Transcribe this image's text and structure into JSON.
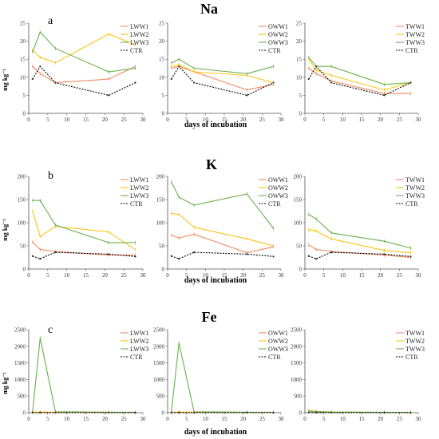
{
  "colors": {
    "s1": "#f08a5d",
    "s2": "#ffc20e",
    "s3": "#6ab04c",
    "ctr": "#000000",
    "axis": "#555555",
    "ctr_marker": "#333333"
  },
  "chart_data": [
    {
      "type": "line",
      "name": "na",
      "title": "Na",
      "letter": "a",
      "ylabel": "mg kg⁻¹",
      "xlabel": "days of incubation",
      "xlim": [
        0,
        30
      ],
      "ylim": [
        0,
        25
      ],
      "xticks": [
        0,
        5,
        10,
        15,
        20,
        25,
        30
      ],
      "yticks": [
        0,
        5,
        10,
        15,
        20,
        25
      ],
      "panels": [
        {
          "series": [
            {
              "name": "LWW1",
              "color": "s1",
              "x": [
                1,
                3,
                7,
                21,
                28
              ],
              "y": [
                13,
                11,
                8.5,
                9.5,
                13
              ]
            },
            {
              "name": "LWW2",
              "color": "s2",
              "x": [
                1,
                3,
                7,
                21,
                28
              ],
              "y": [
                17.5,
                15.5,
                14,
                22,
                19
              ]
            },
            {
              "name": "LWW3",
              "color": "s3",
              "x": [
                1,
                3,
                7,
                21,
                28
              ],
              "y": [
                17,
                22.5,
                18,
                11.5,
                12.5
              ]
            },
            {
              "name": "CTR",
              "color": "ctr",
              "x": [
                1,
                3,
                7,
                21,
                28
              ],
              "y": [
                9.5,
                13,
                8.5,
                5,
                8.5
              ]
            }
          ]
        },
        {
          "series": [
            {
              "name": "OWW1",
              "color": "s1",
              "x": [
                1,
                3,
                7,
                21,
                28
              ],
              "y": [
                12.5,
                13,
                11.5,
                6.5,
                8
              ]
            },
            {
              "name": "OWW2",
              "color": "s2",
              "x": [
                1,
                3,
                7,
                21,
                28
              ],
              "y": [
                13,
                13.5,
                11.5,
                10.5,
                8.5
              ]
            },
            {
              "name": "OWW3",
              "color": "s3",
              "x": [
                1,
                3,
                7,
                21,
                28
              ],
              "y": [
                14,
                15,
                12.5,
                11,
                13
              ]
            },
            {
              "name": "CTR",
              "color": "ctr",
              "x": [
                1,
                3,
                7,
                21,
                28
              ],
              "y": [
                9.5,
                13,
                8.5,
                5,
                8.5
              ]
            }
          ]
        },
        {
          "series": [
            {
              "name": "TWW1",
              "color": "s1",
              "x": [
                1,
                3,
                7,
                21,
                28
              ],
              "y": [
                12.5,
                11,
                9,
                5.5,
                5.5
              ]
            },
            {
              "name": "TWW2",
              "color": "s2",
              "x": [
                1,
                3,
                7,
                21,
                28
              ],
              "y": [
                15,
                12,
                10.5,
                6.5,
                8.5
              ]
            },
            {
              "name": "TWW3",
              "color": "s3",
              "x": [
                1,
                3,
                7,
                21,
                28
              ],
              "y": [
                15.5,
                13,
                13,
                8,
                8.5
              ]
            },
            {
              "name": "CTR",
              "color": "ctr",
              "x": [
                1,
                3,
                7,
                21,
                28
              ],
              "y": [
                9.5,
                13,
                8.5,
                5,
                8.5
              ]
            }
          ]
        }
      ]
    },
    {
      "type": "line",
      "name": "k",
      "title": "K",
      "letter": "b",
      "ylabel": "mg kg⁻¹",
      "xlabel": "days of incubation",
      "xlim": [
        0,
        30
      ],
      "ylim": [
        0,
        200
      ],
      "xticks": [
        0,
        5,
        10,
        15,
        20,
        25,
        30
      ],
      "yticks": [
        0,
        50,
        100,
        150,
        200
      ],
      "panels": [
        {
          "series": [
            {
              "name": "LWW1",
              "color": "s1",
              "x": [
                1,
                3,
                7,
                21,
                28
              ],
              "y": [
                58,
                42,
                38,
                30,
                30
              ]
            },
            {
              "name": "LWW2",
              "color": "s2",
              "x": [
                1,
                3,
                7,
                21,
                28
              ],
              "y": [
                125,
                70,
                92,
                80,
                42
              ]
            },
            {
              "name": "LWW3",
              "color": "s3",
              "x": [
                1,
                3,
                7,
                21,
                28
              ],
              "y": [
                148,
                148,
                95,
                57,
                57
              ]
            },
            {
              "name": "CTR",
              "color": "ctr",
              "x": [
                1,
                3,
                7,
                21,
                28
              ],
              "y": [
                28,
                22,
                36,
                32,
                27
              ]
            }
          ]
        },
        {
          "series": [
            {
              "name": "OWW1",
              "color": "s1",
              "x": [
                1,
                3,
                7,
                21,
                28
              ],
              "y": [
                73,
                67,
                75,
                35,
                48
              ]
            },
            {
              "name": "OWW2",
              "color": "s2",
              "x": [
                1,
                3,
                7,
                21,
                28
              ],
              "y": [
                120,
                118,
                90,
                65,
                50
              ]
            },
            {
              "name": "OWW3",
              "color": "s3",
              "x": [
                1,
                3,
                7,
                21,
                28
              ],
              "y": [
                188,
                155,
                138,
                162,
                88
              ]
            },
            {
              "name": "CTR",
              "color": "ctr",
              "x": [
                1,
                3,
                7,
                21,
                28
              ],
              "y": [
                28,
                22,
                36,
                32,
                27
              ]
            }
          ]
        },
        {
          "series": [
            {
              "name": "TWW1",
              "color": "s1",
              "x": [
                1,
                3,
                7,
                21,
                28
              ],
              "y": [
                52,
                42,
                38,
                30,
                25
              ]
            },
            {
              "name": "TWW2",
              "color": "s2",
              "x": [
                1,
                3,
                7,
                21,
                28
              ],
              "y": [
                85,
                82,
                65,
                40,
                35
              ]
            },
            {
              "name": "TWW3",
              "color": "s3",
              "x": [
                1,
                3,
                7,
                21,
                28
              ],
              "y": [
                118,
                108,
                78,
                60,
                45
              ]
            },
            {
              "name": "CTR",
              "color": "ctr",
              "x": [
                1,
                3,
                7,
                21,
                28
              ],
              "y": [
                28,
                22,
                36,
                32,
                27
              ]
            }
          ]
        }
      ]
    },
    {
      "type": "line",
      "name": "fe",
      "title": "Fe",
      "letter": "c",
      "ylabel": "mg kg⁻¹",
      "xlabel": "days of incubation",
      "xlim": [
        0,
        30
      ],
      "ylim": [
        0,
        2500
      ],
      "xticks": [
        0,
        5,
        10,
        15,
        20,
        25,
        30
      ],
      "yticks": [
        0,
        500,
        1000,
        1500,
        2000,
        2500
      ],
      "panels": [
        {
          "series": [
            {
              "name": "LWW1",
              "color": "s1",
              "x": [
                1,
                3,
                7,
                21,
                28
              ],
              "y": [
                10,
                15,
                10,
                8,
                5
              ]
            },
            {
              "name": "LWW2",
              "color": "s2",
              "x": [
                1,
                3,
                7,
                21,
                28
              ],
              "y": [
                15,
                20,
                15,
                10,
                8
              ]
            },
            {
              "name": "LWW3",
              "color": "s3",
              "x": [
                1,
                3,
                7,
                21,
                28
              ],
              "y": [
                20,
                2250,
                30,
                15,
                10
              ]
            },
            {
              "name": "CTR",
              "color": "ctr",
              "x": [
                1,
                3,
                7,
                21,
                28
              ],
              "y": [
                5,
                5,
                5,
                5,
                5
              ]
            }
          ]
        },
        {
          "series": [
            {
              "name": "OWW1",
              "color": "s1",
              "x": [
                1,
                3,
                7,
                21,
                28
              ],
              "y": [
                10,
                15,
                10,
                8,
                5
              ]
            },
            {
              "name": "OWW2",
              "color": "s2",
              "x": [
                1,
                3,
                7,
                21,
                28
              ],
              "y": [
                15,
                20,
                15,
                10,
                8
              ]
            },
            {
              "name": "OWW3",
              "color": "s3",
              "x": [
                1,
                3,
                7,
                21,
                28
              ],
              "y": [
                20,
                2100,
                30,
                15,
                10
              ]
            },
            {
              "name": "CTR",
              "color": "ctr",
              "x": [
                1,
                3,
                7,
                21,
                28
              ],
              "y": [
                5,
                5,
                5,
                5,
                5
              ]
            }
          ]
        },
        {
          "series": [
            {
              "name": "TWW1",
              "color": "s1",
              "x": [
                1,
                3,
                7,
                21,
                28
              ],
              "y": [
                40,
                30,
                15,
                10,
                8
              ]
            },
            {
              "name": "TWW2",
              "color": "s2",
              "x": [
                1,
                3,
                7,
                21,
                28
              ],
              "y": [
                60,
                40,
                20,
                10,
                8
              ]
            },
            {
              "name": "TWW3",
              "color": "s3",
              "x": [
                1,
                3,
                7,
                21,
                28
              ],
              "y": [
                50,
                35,
                20,
                10,
                8
              ]
            },
            {
              "name": "CTR",
              "color": "ctr",
              "x": [
                1,
                3,
                7,
                21,
                28
              ],
              "y": [
                5,
                5,
                5,
                5,
                5
              ]
            }
          ]
        }
      ]
    }
  ]
}
